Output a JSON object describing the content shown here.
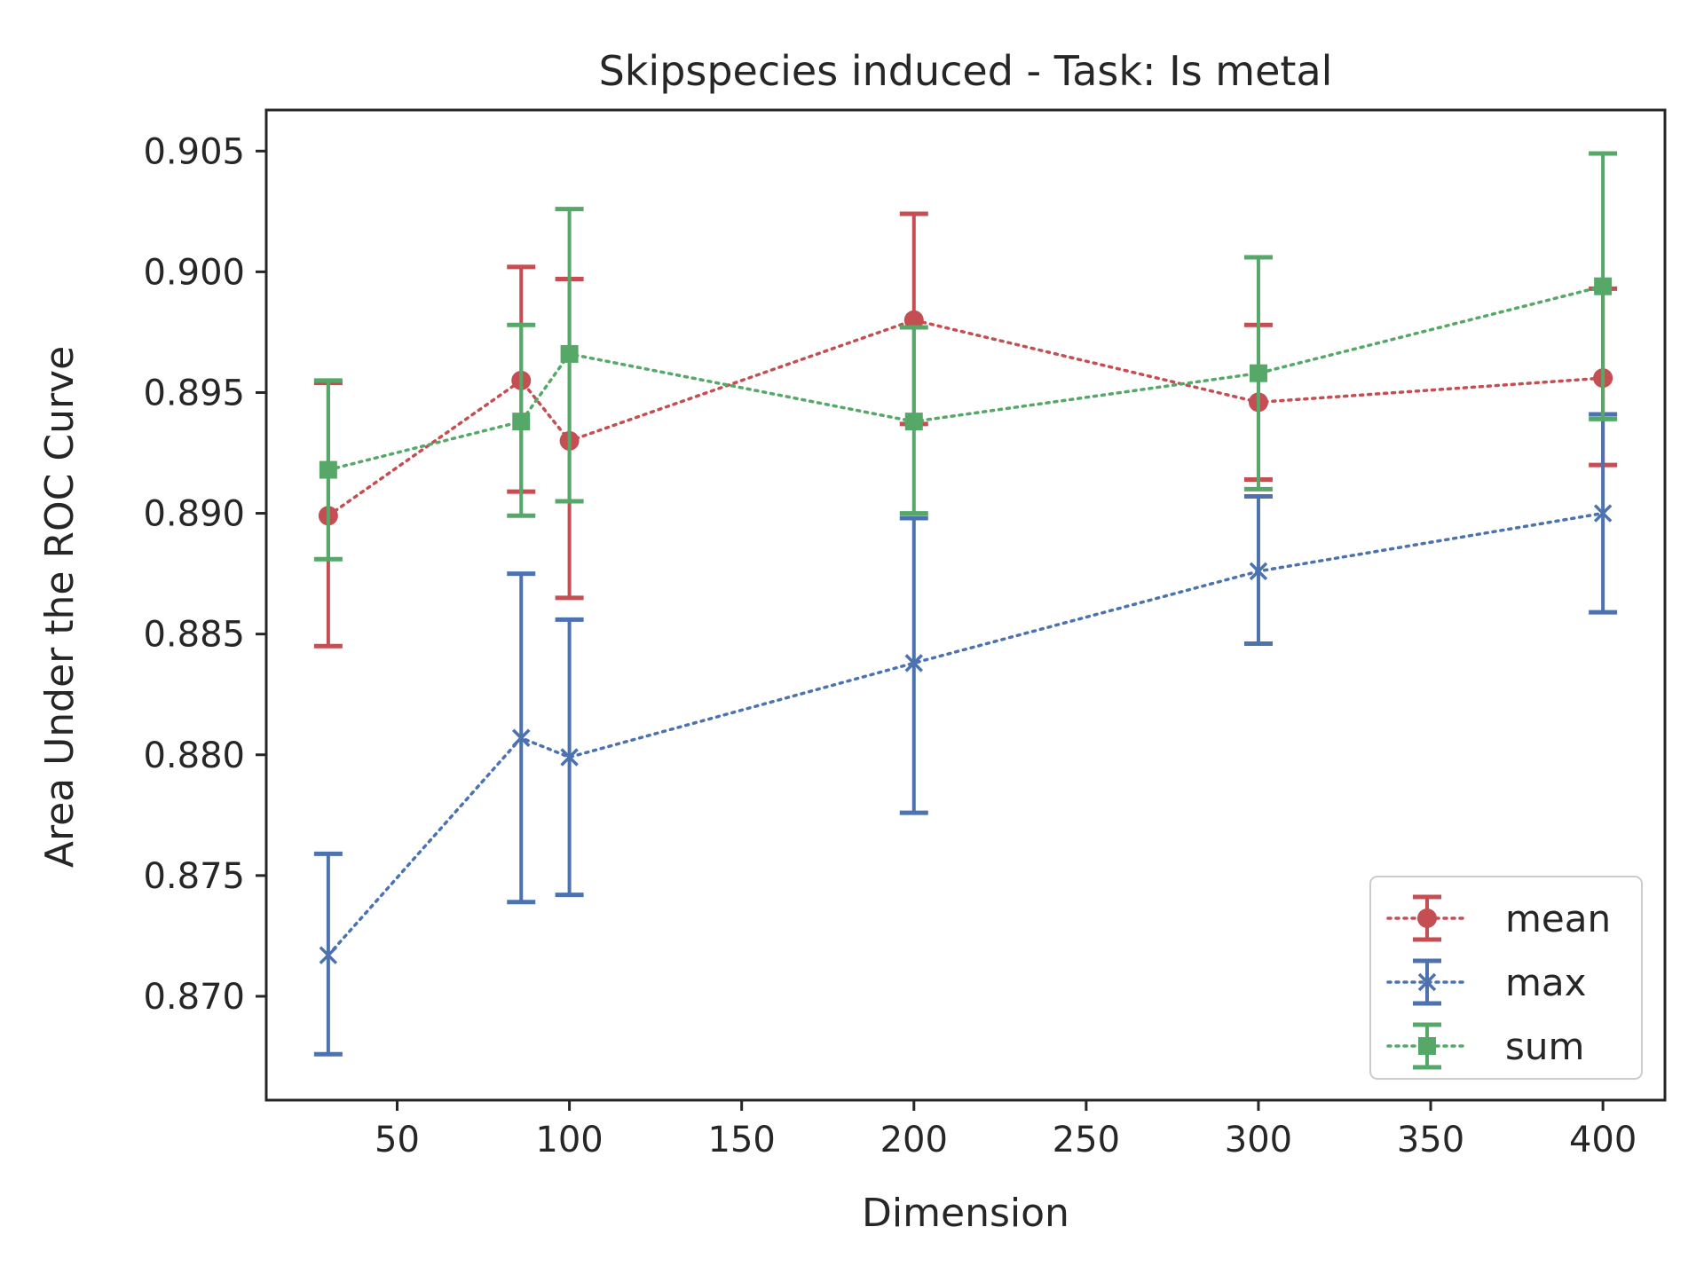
{
  "chart_data": {
    "type": "line",
    "title": "Skipspecies induced - Task: Is metal",
    "xlabel": "Dimension",
    "ylabel": "Area Under the ROC Curve",
    "xlim": [
      12,
      418
    ],
    "ylim": [
      0.8657,
      0.9067
    ],
    "xticks": [
      50,
      100,
      150,
      200,
      250,
      300,
      350,
      400
    ],
    "xtick_labels": [
      "50",
      "100",
      "150",
      "200",
      "250",
      "300",
      "350",
      "400"
    ],
    "yticks": [
      0.87,
      0.875,
      0.88,
      0.885,
      0.89,
      0.895,
      0.9,
      0.905
    ],
    "ytick_labels": [
      "0.870",
      "0.875",
      "0.880",
      "0.885",
      "0.890",
      "0.895",
      "0.900",
      "0.905"
    ],
    "grid": false,
    "legend": "lower-right",
    "series": [
      {
        "name": "mean",
        "color": "#c44e52",
        "marker": "circle",
        "x": [
          30,
          86,
          100,
          200,
          300,
          400
        ],
        "y": [
          0.8899,
          0.8955,
          0.893,
          0.898,
          0.8946,
          0.8956
        ],
        "yerr_low": [
          0.8845,
          0.8909,
          0.8865,
          0.8937,
          0.8914,
          0.892
        ],
        "yerr_high": [
          0.8954,
          0.9002,
          0.8997,
          0.9024,
          0.8978,
          0.8993
        ]
      },
      {
        "name": "max",
        "color": "#4c72b0",
        "marker": "x",
        "x": [
          30,
          86,
          100,
          200,
          300,
          400
        ],
        "y": [
          0.8717,
          0.8807,
          0.8799,
          0.8838,
          0.8876,
          0.89
        ],
        "yerr_low": [
          0.8676,
          0.8739,
          0.8742,
          0.8776,
          0.8846,
          0.8859
        ],
        "yerr_high": [
          0.8759,
          0.8875,
          0.8856,
          0.8898,
          0.8907,
          0.8941
        ]
      },
      {
        "name": "sum",
        "color": "#55a868",
        "marker": "square",
        "x": [
          30,
          86,
          100,
          200,
          300,
          400
        ],
        "y": [
          0.8918,
          0.8938,
          0.8966,
          0.8938,
          0.8958,
          0.8994
        ],
        "yerr_low": [
          0.8881,
          0.8899,
          0.8905,
          0.89,
          0.891,
          0.8939
        ],
        "yerr_high": [
          0.8955,
          0.8978,
          0.9026,
          0.8977,
          0.9006,
          0.9049
        ]
      }
    ]
  }
}
